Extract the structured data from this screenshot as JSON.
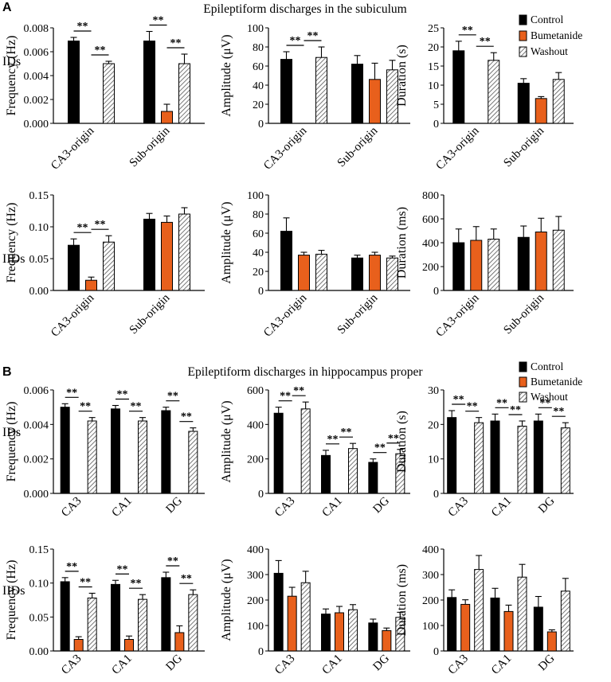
{
  "colors": {
    "control": "#000000",
    "bumetanide": "#E8601C",
    "washout": "#ffffff",
    "hatch": "#555555"
  },
  "sections": [
    {
      "label": "A",
      "title": "Epileptiform discharges in the subiculum",
      "legend": [
        "Control",
        "Bumetanide",
        "Washout"
      ]
    },
    {
      "label": "B",
      "title": "Epileptiform discharges in hippocampus proper",
      "legend": [
        "Control",
        "Bumetanide",
        "Washout"
      ]
    }
  ],
  "row_labels": [
    "IDs",
    "IIDs",
    "IDs",
    "IIDs"
  ],
  "chart_data": [
    {
      "type": "bar",
      "panel": "A-IDs-frequency",
      "ylabel": "Frequency (Hz)",
      "ylim": [
        0,
        0.008
      ],
      "ticks": [
        "0.000",
        "0.002",
        "0.004",
        "0.006",
        "0.008"
      ],
      "categories": [
        "CA3-origin",
        "Sub-origin"
      ],
      "series": [
        {
          "name": "Control",
          "values": [
            0.0069,
            0.0069
          ],
          "errors": [
            0.0003,
            0.0008
          ]
        },
        {
          "name": "Bumetanide",
          "values": [
            0,
            0.001
          ],
          "errors": [
            0,
            0.0006
          ]
        },
        {
          "name": "Washout",
          "values": [
            0.005,
            0.005
          ],
          "errors": [
            0.0002,
            0.0008
          ]
        }
      ],
      "significance": [
        {
          "text": "**",
          "cat": 0,
          "from": 0,
          "to": 1
        },
        {
          "text": "**",
          "cat": 0,
          "from": 1,
          "to": 2
        },
        {
          "text": "**",
          "cat": 1,
          "from": 0,
          "to": 1
        },
        {
          "text": "**",
          "cat": 1,
          "from": 1,
          "to": 2
        }
      ]
    },
    {
      "type": "bar",
      "panel": "A-IDs-amplitude",
      "ylabel": "Amplitude (μV)",
      "ylim": [
        0,
        100
      ],
      "ticks": [
        "0",
        "20",
        "40",
        "60",
        "80",
        "100"
      ],
      "categories": [
        "CA3-origin",
        "Sub-origin"
      ],
      "series": [
        {
          "name": "Control",
          "values": [
            67,
            62
          ],
          "errors": [
            8,
            9
          ]
        },
        {
          "name": "Bumetanide",
          "values": [
            0,
            46
          ],
          "errors": [
            0,
            17
          ]
        },
        {
          "name": "Washout",
          "values": [
            69,
            56
          ],
          "errors": [
            11,
            10
          ]
        }
      ],
      "significance": [
        {
          "text": "**",
          "cat": 0,
          "from": 0,
          "to": 1
        },
        {
          "text": "**",
          "cat": 0,
          "from": 1,
          "to": 2
        }
      ]
    },
    {
      "type": "bar",
      "panel": "A-IDs-duration",
      "ylabel": "Duration (s)",
      "ylim": [
        0,
        25
      ],
      "ticks": [
        "0",
        "5",
        "10",
        "15",
        "20",
        "25"
      ],
      "categories": [
        "CA3-origin",
        "Sub-origin"
      ],
      "series": [
        {
          "name": "Control",
          "values": [
            19,
            10.5
          ],
          "errors": [
            2.5,
            1.2
          ]
        },
        {
          "name": "Bumetanide",
          "values": [
            0,
            6.5
          ],
          "errors": [
            0,
            0.5
          ]
        },
        {
          "name": "Washout",
          "values": [
            16.5,
            11.5
          ],
          "errors": [
            2,
            1.8
          ]
        }
      ],
      "significance": [
        {
          "text": "**",
          "cat": 0,
          "from": 0,
          "to": 1
        },
        {
          "text": "**",
          "cat": 0,
          "from": 1,
          "to": 2
        }
      ]
    },
    {
      "type": "bar",
      "panel": "A-IIDs-frequency",
      "ylabel": "Frequency (Hz)",
      "ylim": [
        0,
        0.15
      ],
      "ticks": [
        "0.00",
        "0.05",
        "0.10",
        "0.15"
      ],
      "categories": [
        "CA3-origin",
        "Sub-origin"
      ],
      "series": [
        {
          "name": "Control",
          "values": [
            0.071,
            0.112
          ],
          "errors": [
            0.01,
            0.009
          ]
        },
        {
          "name": "Bumetanide",
          "values": [
            0.016,
            0.107
          ],
          "errors": [
            0.005,
            0.01
          ]
        },
        {
          "name": "Washout",
          "values": [
            0.076,
            0.12
          ],
          "errors": [
            0.01,
            0.01
          ]
        }
      ],
      "significance": [
        {
          "text": "**",
          "cat": 0,
          "from": 0,
          "to": 1
        },
        {
          "text": "**",
          "cat": 0,
          "from": 1,
          "to": 2
        }
      ]
    },
    {
      "type": "bar",
      "panel": "A-IIDs-amplitude",
      "ylabel": "Amplitude (μV)",
      "ylim": [
        0,
        100
      ],
      "ticks": [
        "0",
        "20",
        "40",
        "60",
        "80",
        "100"
      ],
      "categories": [
        "CA3-origin",
        "Sub-origin"
      ],
      "series": [
        {
          "name": "Control",
          "values": [
            62,
            34
          ],
          "errors": [
            14,
            3
          ]
        },
        {
          "name": "Bumetanide",
          "values": [
            37,
            37
          ],
          "errors": [
            3,
            3
          ]
        },
        {
          "name": "Washout",
          "values": [
            38,
            34
          ],
          "errors": [
            4,
            2
          ]
        }
      ],
      "significance": []
    },
    {
      "type": "bar",
      "panel": "A-IIDs-duration",
      "ylabel": "Duration (ms)",
      "ylim": [
        0,
        800
      ],
      "ticks": [
        "0",
        "200",
        "400",
        "600",
        "800"
      ],
      "categories": [
        "CA3-origin",
        "Sub-origin"
      ],
      "series": [
        {
          "name": "Control",
          "values": [
            400,
            445
          ],
          "errors": [
            115,
            95
          ]
        },
        {
          "name": "Bumetanide",
          "values": [
            420,
            490
          ],
          "errors": [
            115,
            115
          ]
        },
        {
          "name": "Washout",
          "values": [
            430,
            505
          ],
          "errors": [
            85,
            115
          ]
        }
      ],
      "significance": []
    },
    {
      "type": "bar",
      "panel": "B-IDs-frequency",
      "ylabel": "Frequency (Hz)",
      "ylim": [
        0,
        0.006
      ],
      "ticks": [
        "0.000",
        "0.002",
        "0.004",
        "0.006"
      ],
      "categories": [
        "CA3",
        "CA1",
        "DG"
      ],
      "series": [
        {
          "name": "Control",
          "values": [
            0.005,
            0.0049,
            0.0048
          ],
          "errors": [
            0.0002,
            0.0002,
            0.0002
          ]
        },
        {
          "name": "Bumetanide",
          "values": [
            0,
            0,
            0
          ],
          "errors": [
            0,
            0,
            0
          ]
        },
        {
          "name": "Washout",
          "values": [
            0.0042,
            0.0042,
            0.0036
          ],
          "errors": [
            0.0002,
            0.0002,
            0.0002
          ]
        }
      ],
      "significance": [
        {
          "text": "**",
          "cat": 0,
          "from": 0,
          "to": 1
        },
        {
          "text": "**",
          "cat": 0,
          "from": 1,
          "to": 2
        },
        {
          "text": "**",
          "cat": 1,
          "from": 0,
          "to": 1
        },
        {
          "text": "**",
          "cat": 1,
          "from": 1,
          "to": 2
        },
        {
          "text": "**",
          "cat": 2,
          "from": 0,
          "to": 1
        },
        {
          "text": "**",
          "cat": 2,
          "from": 1,
          "to": 2
        }
      ]
    },
    {
      "type": "bar",
      "panel": "B-IDs-amplitude",
      "ylabel": "Amplitude (μV)",
      "ylim": [
        0,
        600
      ],
      "ticks": [
        "0",
        "200",
        "400",
        "600"
      ],
      "categories": [
        "CA3",
        "CA1",
        "DG"
      ],
      "series": [
        {
          "name": "Control",
          "values": [
            465,
            220,
            180
          ],
          "errors": [
            35,
            30,
            20
          ]
        },
        {
          "name": "Bumetanide",
          "values": [
            0,
            0,
            0
          ],
          "errors": [
            0,
            0,
            0
          ]
        },
        {
          "name": "Washout",
          "values": [
            490,
            260,
            230
          ],
          "errors": [
            40,
            30,
            25
          ]
        }
      ],
      "significance": [
        {
          "text": "**",
          "cat": 0,
          "from": 0,
          "to": 1
        },
        {
          "text": "**",
          "cat": 0,
          "from": 1,
          "to": 2
        },
        {
          "text": "**",
          "cat": 1,
          "from": 0,
          "to": 1
        },
        {
          "text": "**",
          "cat": 1,
          "from": 1,
          "to": 2
        },
        {
          "text": "**",
          "cat": 2,
          "from": 0,
          "to": 1
        },
        {
          "text": "**",
          "cat": 2,
          "from": 1,
          "to": 2
        }
      ]
    },
    {
      "type": "bar",
      "panel": "B-IDs-duration",
      "ylabel": "Duration (s)",
      "ylim": [
        0,
        30
      ],
      "ticks": [
        "0",
        "10",
        "20",
        "30"
      ],
      "categories": [
        "CA3",
        "CA1",
        "DG"
      ],
      "series": [
        {
          "name": "Control",
          "values": [
            22,
            21,
            21
          ],
          "errors": [
            2,
            2,
            2
          ]
        },
        {
          "name": "Bumetanide",
          "values": [
            0,
            0,
            0
          ],
          "errors": [
            0,
            0,
            0
          ]
        },
        {
          "name": "Washout",
          "values": [
            20.5,
            19.5,
            19
          ],
          "errors": [
            1.5,
            1.5,
            1.5
          ]
        }
      ],
      "significance": [
        {
          "text": "**",
          "cat": 0,
          "from": 0,
          "to": 1
        },
        {
          "text": "**",
          "cat": 0,
          "from": 1,
          "to": 2
        },
        {
          "text": "**",
          "cat": 1,
          "from": 0,
          "to": 1
        },
        {
          "text": "**",
          "cat": 1,
          "from": 1,
          "to": 2
        },
        {
          "text": "**",
          "cat": 2,
          "from": 0,
          "to": 1
        },
        {
          "text": "**",
          "cat": 2,
          "from": 1,
          "to": 2
        }
      ]
    },
    {
      "type": "bar",
      "panel": "B-IIDs-frequency",
      "ylabel": "Frequency (Hz)",
      "ylim": [
        0,
        0.15
      ],
      "ticks": [
        "0.00",
        "0.05",
        "0.10",
        "0.15"
      ],
      "categories": [
        "CA3",
        "CA1",
        "DG"
      ],
      "series": [
        {
          "name": "Control",
          "values": [
            0.102,
            0.098,
            0.108
          ],
          "errors": [
            0.006,
            0.006,
            0.008
          ]
        },
        {
          "name": "Bumetanide",
          "values": [
            0.017,
            0.017,
            0.027
          ],
          "errors": [
            0.004,
            0.005,
            0.01
          ]
        },
        {
          "name": "Washout",
          "values": [
            0.078,
            0.076,
            0.083
          ],
          "errors": [
            0.007,
            0.007,
            0.007
          ]
        }
      ],
      "significance": [
        {
          "text": "**",
          "cat": 0,
          "from": 0,
          "to": 1
        },
        {
          "text": "**",
          "cat": 0,
          "from": 1,
          "to": 2
        },
        {
          "text": "**",
          "cat": 1,
          "from": 0,
          "to": 1
        },
        {
          "text": "**",
          "cat": 1,
          "from": 1,
          "to": 2
        },
        {
          "text": "**",
          "cat": 2,
          "from": 0,
          "to": 1
        },
        {
          "text": "**",
          "cat": 2,
          "from": 1,
          "to": 2
        }
      ]
    },
    {
      "type": "bar",
      "panel": "B-IIDs-amplitude",
      "ylabel": "Amplitude (μV)",
      "ylim": [
        0,
        400
      ],
      "ticks": [
        "0",
        "100",
        "200",
        "300",
        "400"
      ],
      "categories": [
        "CA3",
        "CA1",
        "DG"
      ],
      "series": [
        {
          "name": "Control",
          "values": [
            305,
            145,
            110
          ],
          "errors": [
            50,
            20,
            15
          ]
        },
        {
          "name": "Bumetanide",
          "values": [
            215,
            150,
            80
          ],
          "errors": [
            35,
            25,
            10
          ]
        },
        {
          "name": "Washout",
          "values": [
            268,
            162,
            132
          ],
          "errors": [
            45,
            20,
            20
          ]
        }
      ],
      "significance": []
    },
    {
      "type": "bar",
      "panel": "B-IIDs-duration",
      "ylabel": "Duration (ms)",
      "ylim": [
        0,
        400
      ],
      "ticks": [
        "0",
        "100",
        "200",
        "300",
        "400"
      ],
      "categories": [
        "CA3",
        "CA1",
        "DG"
      ],
      "series": [
        {
          "name": "Control",
          "values": [
            210,
            208,
            172
          ],
          "errors": [
            30,
            38,
            42
          ]
        },
        {
          "name": "Bumetanide",
          "values": [
            183,
            155,
            75
          ],
          "errors": [
            18,
            25,
            8
          ]
        },
        {
          "name": "Washout",
          "values": [
            320,
            290,
            235
          ],
          "errors": [
            55,
            50,
            50
          ]
        }
      ],
      "significance": []
    }
  ]
}
